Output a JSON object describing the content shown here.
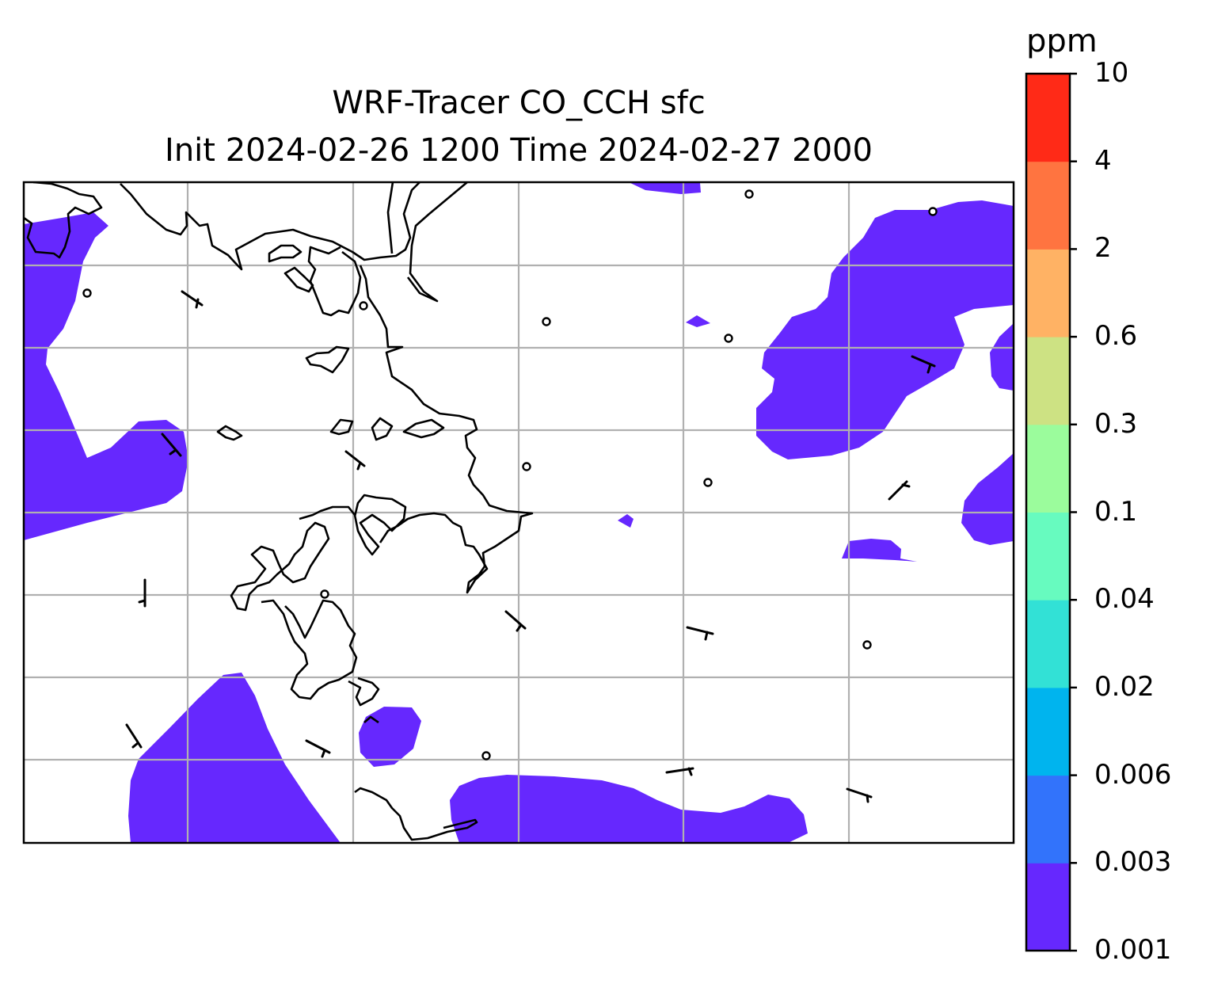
{
  "title": {
    "line1": "WRF-Tracer CO_CCH sfc",
    "line2": "Init 2024-02-26 1200 Time 2024-02-27 2000"
  },
  "colorbar": {
    "unit": "ppm",
    "ticks": [
      "0.001",
      "0.003",
      "0.006",
      "0.02",
      "0.04",
      "0.1",
      "0.3",
      "0.6",
      "2",
      "4",
      "10"
    ],
    "colors": [
      "#6628fe",
      "#3273fb",
      "#00b4ee",
      "#32e1d6",
      "#67fbbf",
      "#9bfc9c",
      "#cde283",
      "#ffb264",
      "#ff7440",
      "#ff2a17"
    ]
  },
  "map": {
    "field_color": "#6628fe",
    "coastline_color": "#000000",
    "grid_color": "#b0b0b0",
    "wind_barb_color": "#000000"
  }
}
